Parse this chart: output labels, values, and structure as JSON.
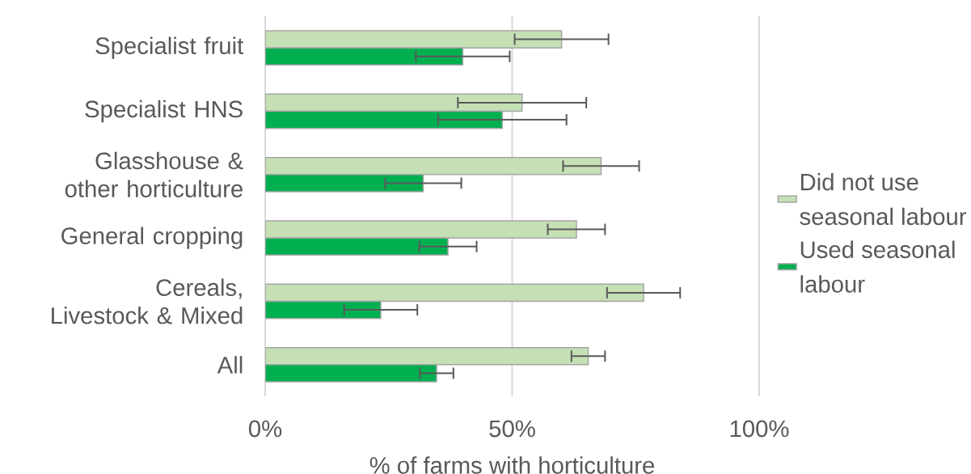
{
  "chart_data": {
    "type": "bar",
    "orientation": "horizontal",
    "xlabel": "% of farms with horticulture",
    "categories": [
      "Specialist fruit",
      "Specialist HNS",
      "Glasshouse & other horticulture",
      "General cropping",
      "Cereals, Livestock & Mixed",
      "All"
    ],
    "series": [
      {
        "name": "Did not use seasonal labour",
        "color": "#c5e0b4",
        "values": [
          60,
          52,
          68,
          63,
          76.6,
          65.4
        ],
        "errors": [
          9.5,
          13,
          7.7,
          5.8,
          7.4,
          3.4
        ]
      },
      {
        "name": "Used seasonal labour",
        "color": "#00b050",
        "values": [
          40,
          48,
          32,
          37,
          23.4,
          34.7
        ],
        "errors": [
          9.5,
          13,
          7.7,
          5.8,
          7.4,
          3.4
        ]
      }
    ],
    "xlim": [
      0,
      100
    ],
    "xticks": [
      {
        "value": 0,
        "label": "0%"
      },
      {
        "value": 50,
        "label": "50%"
      },
      {
        "value": 100,
        "label": "100%"
      }
    ],
    "grid": "x",
    "legend": "right"
  }
}
